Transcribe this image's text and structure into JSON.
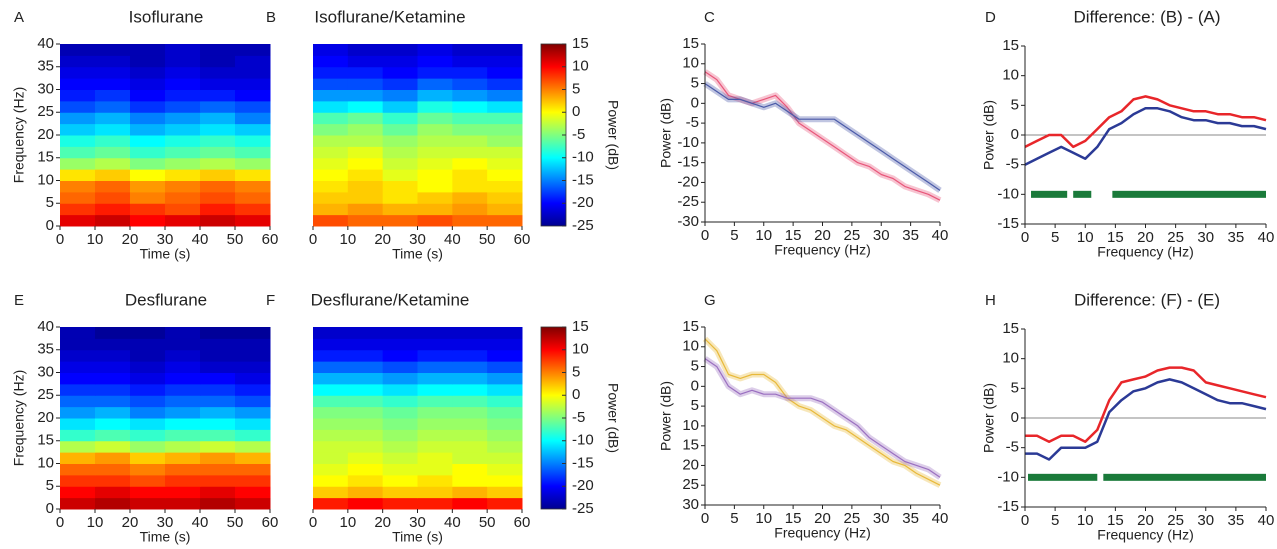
{
  "chart_data": [
    {
      "type": "heatmap",
      "panel": "A",
      "title": "Isoflurane",
      "xlabel": "Time (s)",
      "ylabel": "Frequency (Hz)",
      "xlim": [
        0,
        60
      ],
      "ylim": [
        0,
        40
      ],
      "xticks": [
        0,
        10,
        20,
        30,
        40,
        50,
        60
      ],
      "yticks": [
        0,
        5,
        10,
        15,
        20,
        25,
        30,
        35,
        40
      ],
      "xbins": [
        0,
        10,
        20,
        30,
        40,
        50,
        60
      ],
      "ybins": [
        0,
        2.5,
        5,
        7.5,
        10,
        12.5,
        15,
        17.5,
        20,
        22.5,
        25,
        27.5,
        30,
        32.5,
        35,
        37.5,
        40
      ],
      "zlim": [
        -25,
        15
      ],
      "colormap": "jet",
      "z": [
        [
          11,
          12,
          10,
          11,
          12,
          11
        ],
        [
          8,
          9,
          8,
          7,
          9,
          8
        ],
        [
          6,
          7,
          5,
          6,
          7,
          6
        ],
        [
          5,
          6,
          4,
          5,
          6,
          5
        ],
        [
          1,
          2,
          0,
          1,
          2,
          1
        ],
        [
          -4,
          -3,
          -5,
          -4,
          -3,
          -4
        ],
        [
          -7,
          -6,
          -8,
          -7,
          -6,
          -7
        ],
        [
          -9,
          -8,
          -10,
          -9,
          -8,
          -9
        ],
        [
          -12,
          -11,
          -13,
          -12,
          -11,
          -12
        ],
        [
          -14,
          -13,
          -15,
          -14,
          -13,
          -15
        ],
        [
          -17,
          -16,
          -18,
          -17,
          -16,
          -17
        ],
        [
          -19,
          -18,
          -20,
          -19,
          -19,
          -20
        ],
        [
          -20,
          -20,
          -21,
          -20,
          -21,
          -21
        ],
        [
          -21,
          -21,
          -22,
          -21,
          -22,
          -22
        ],
        [
          -22,
          -22,
          -23,
          -22,
          -23,
          -22
        ],
        [
          -23,
          -23,
          -23,
          -22,
          -23,
          -23
        ]
      ]
    },
    {
      "type": "heatmap",
      "panel": "B",
      "title": "Isoflurane/Ketamine",
      "xlabel": "Time (s)",
      "xlim": [
        0,
        60
      ],
      "ylim": [
        0,
        40
      ],
      "xticks": [
        0,
        10,
        20,
        30,
        40,
        50,
        60
      ],
      "xbins": [
        0,
        10,
        20,
        30,
        40,
        50,
        60
      ],
      "ybins": [
        0,
        2.5,
        5,
        7.5,
        10,
        12.5,
        15,
        17.5,
        20,
        22.5,
        25,
        27.5,
        30,
        32.5,
        35,
        37.5,
        40
      ],
      "zlim": [
        -25,
        15
      ],
      "colormap": "jet",
      "colorbar": {
        "label": "Power (dB)",
        "ticks": [
          15,
          10,
          5,
          0,
          -5,
          -10,
          -15,
          -20,
          -25
        ]
      },
      "z": [
        [
          7,
          6,
          6,
          7,
          6,
          6
        ],
        [
          3,
          4,
          3,
          3,
          4,
          3
        ],
        [
          2,
          2,
          1,
          2,
          3,
          2
        ],
        [
          1,
          2,
          1,
          0,
          1,
          1
        ],
        [
          0,
          1,
          -1,
          0,
          1,
          0
        ],
        [
          -1,
          0,
          -2,
          -1,
          0,
          -1
        ],
        [
          -2,
          -1,
          -3,
          -2,
          -2,
          -2
        ],
        [
          -3,
          -3,
          -4,
          -3,
          -3,
          -4
        ],
        [
          -5,
          -4,
          -6,
          -4,
          -5,
          -5
        ],
        [
          -7,
          -6,
          -8,
          -6,
          -7,
          -7
        ],
        [
          -11,
          -10,
          -12,
          -9,
          -10,
          -11
        ],
        [
          -14,
          -14,
          -15,
          -13,
          -14,
          -15
        ],
        [
          -17,
          -17,
          -18,
          -16,
          -17,
          -18
        ],
        [
          -19,
          -19,
          -20,
          -19,
          -19,
          -20
        ],
        [
          -20,
          -21,
          -21,
          -20,
          -21,
          -21
        ],
        [
          -21,
          -22,
          -22,
          -21,
          -22,
          -22
        ]
      ]
    },
    {
      "type": "line",
      "panel": "C",
      "xlabel": "Frequency (Hz)",
      "ylabel": "Power (dB)",
      "xlim": [
        0,
        40
      ],
      "ylim": [
        -30,
        15
      ],
      "xticks": [
        0,
        5,
        10,
        15,
        20,
        25,
        30,
        35,
        40
      ],
      "yticks": [
        15,
        10,
        5,
        0,
        -5,
        -10,
        -15,
        -20,
        -25,
        -30
      ],
      "x": [
        0,
        2,
        4,
        6,
        8,
        10,
        12,
        14,
        16,
        18,
        20,
        22,
        24,
        26,
        28,
        30,
        32,
        34,
        36,
        38,
        40
      ],
      "series": [
        {
          "color": "#e8567a",
          "values": [
            8,
            6,
            2,
            1,
            0,
            1,
            2,
            -1,
            -5,
            -7,
            -9,
            -11,
            -13,
            -15,
            -16,
            -18,
            -19,
            -21,
            -22,
            -23,
            -24.5
          ]
        },
        {
          "color": "#4a5aa8",
          "values": [
            5,
            3,
            1,
            1,
            0,
            -1,
            0,
            -2,
            -4,
            -4,
            -4,
            -4,
            -6,
            -8,
            -10,
            -12,
            -14,
            -16,
            -18,
            -20,
            -22
          ]
        }
      ]
    },
    {
      "type": "line",
      "panel": "D",
      "title": "Difference: (B) - (A)",
      "xlabel": "Frequency (Hz)",
      "ylabel": "Power (dB)",
      "xlim": [
        0,
        40
      ],
      "ylim": [
        -15,
        15
      ],
      "xticks": [
        0,
        5,
        10,
        15,
        20,
        25,
        30,
        35,
        40
      ],
      "yticks": [
        15,
        10,
        5,
        0,
        -5,
        -10,
        -15
      ],
      "refline": 0,
      "x": [
        0,
        2,
        4,
        6,
        8,
        10,
        12,
        14,
        16,
        18,
        20,
        22,
        24,
        26,
        28,
        30,
        32,
        34,
        36,
        38,
        40
      ],
      "series": [
        {
          "color": "#e8262a",
          "values": [
            -2,
            -1,
            0,
            0,
            -2,
            -1,
            1,
            3,
            4,
            6,
            6.5,
            6,
            5,
            4.5,
            4,
            4,
            3.5,
            3.5,
            3,
            3,
            2.5
          ]
        },
        {
          "color": "#2b3a96",
          "values": [
            -5,
            -4,
            -3,
            -2,
            -3,
            -4,
            -2,
            1,
            2,
            3.5,
            4.5,
            4.5,
            4,
            3,
            2.5,
            2.5,
            2,
            2,
            1.5,
            1.5,
            1
          ]
        }
      ],
      "significance": {
        "y": -10,
        "color": "#1a7a3a",
        "intervals": [
          [
            1,
            7
          ],
          [
            8,
            11
          ],
          [
            14.5,
            40
          ]
        ]
      }
    },
    {
      "type": "heatmap",
      "panel": "E",
      "title": "Desflurane",
      "xlabel": "Time (s)",
      "ylabel": "Frequency (Hz)",
      "xlim": [
        0,
        60
      ],
      "ylim": [
        0,
        40
      ],
      "xticks": [
        0,
        10,
        20,
        30,
        40,
        50,
        60
      ],
      "yticks": [
        0,
        5,
        10,
        15,
        20,
        25,
        30,
        35,
        40
      ],
      "xbins": [
        0,
        10,
        20,
        30,
        40,
        50,
        60
      ],
      "ybins": [
        0,
        2.5,
        5,
        7.5,
        10,
        12.5,
        15,
        17.5,
        20,
        22.5,
        25,
        27.5,
        30,
        32.5,
        35,
        37.5,
        40
      ],
      "zlim": [
        -25,
        15
      ],
      "colormap": "jet",
      "z": [
        [
          12,
          13,
          12,
          12,
          13,
          12
        ],
        [
          10,
          11,
          10,
          10,
          11,
          10
        ],
        [
          8,
          8,
          7,
          8,
          8,
          8
        ],
        [
          6,
          6,
          5,
          6,
          6,
          6
        ],
        [
          3,
          4,
          2,
          3,
          4,
          3
        ],
        [
          -3,
          -2,
          -4,
          -3,
          -2,
          -3
        ],
        [
          -8,
          -7,
          -8,
          -7,
          -7,
          -8
        ],
        [
          -11,
          -10,
          -11,
          -10,
          -10,
          -11
        ],
        [
          -14,
          -13,
          -15,
          -14,
          -13,
          -14
        ],
        [
          -16,
          -16,
          -17,
          -16,
          -16,
          -17
        ],
        [
          -18,
          -18,
          -19,
          -18,
          -18,
          -19
        ],
        [
          -20,
          -20,
          -21,
          -20,
          -20,
          -21
        ],
        [
          -21,
          -21,
          -22,
          -21,
          -22,
          -22
        ],
        [
          -22,
          -22,
          -23,
          -22,
          -23,
          -23
        ],
        [
          -23,
          -23,
          -23,
          -23,
          -23,
          -23
        ],
        [
          -23,
          -24,
          -24,
          -23,
          -24,
          -24
        ]
      ]
    },
    {
      "type": "heatmap",
      "panel": "F",
      "title": "Desflurane/Ketamine",
      "xlabel": "Time (s)",
      "xlim": [
        0,
        60
      ],
      "ylim": [
        0,
        40
      ],
      "xticks": [
        0,
        10,
        20,
        30,
        40,
        50,
        60
      ],
      "xbins": [
        0,
        10,
        20,
        30,
        40,
        50,
        60
      ],
      "ybins": [
        0,
        2.5,
        5,
        7.5,
        10,
        12.5,
        15,
        17.5,
        20,
        22.5,
        25,
        27.5,
        30,
        32.5,
        35,
        37.5,
        40
      ],
      "zlim": [
        -25,
        15
      ],
      "colormap": "jet",
      "colorbar": {
        "label": "Power (dB)",
        "ticks": [
          15,
          10,
          5,
          0,
          -5,
          -10,
          -15,
          -20,
          -25
        ]
      },
      "z": [
        [
          9,
          10,
          9,
          9,
          10,
          9
        ],
        [
          2,
          3,
          2,
          2,
          3,
          2
        ],
        [
          0,
          1,
          0,
          1,
          0,
          0
        ],
        [
          -1,
          0,
          -1,
          -1,
          0,
          -1
        ],
        [
          -2,
          -1,
          -2,
          -1,
          -2,
          -2
        ],
        [
          -2,
          -2,
          -3,
          -2,
          -2,
          -3
        ],
        [
          -3,
          -3,
          -4,
          -3,
          -3,
          -4
        ],
        [
          -4,
          -4,
          -5,
          -4,
          -4,
          -5
        ],
        [
          -5,
          -5,
          -6,
          -5,
          -5,
          -6
        ],
        [
          -7,
          -7,
          -8,
          -7,
          -7,
          -8
        ],
        [
          -10,
          -10,
          -11,
          -10,
          -10,
          -11
        ],
        [
          -13,
          -13,
          -14,
          -13,
          -13,
          -14
        ],
        [
          -16,
          -16,
          -17,
          -16,
          -16,
          -17
        ],
        [
          -19,
          -19,
          -20,
          -19,
          -19,
          -20
        ],
        [
          -21,
          -21,
          -21,
          -21,
          -21,
          -21
        ],
        [
          -22,
          -22,
          -22,
          -22,
          -22,
          -22
        ]
      ]
    },
    {
      "type": "line",
      "panel": "G",
      "xlabel": "Frequency (Hz)",
      "ylabel": "Power (dB)",
      "xlim": [
        0,
        40
      ],
      "ylim": [
        -30,
        15
      ],
      "xticks": [
        0,
        5,
        10,
        15,
        20,
        25,
        30,
        35,
        40
      ],
      "yticks": [
        15,
        10,
        5,
        0,
        {
          "value": -5,
          "label": "5"
        },
        {
          "value": -10,
          "label": "10"
        },
        {
          "value": -15,
          "label": "15"
        },
        {
          "value": -20,
          "label": "20"
        },
        {
          "value": -25,
          "label": "25"
        },
        {
          "value": -30,
          "label": "30"
        }
      ],
      "x": [
        0,
        2,
        4,
        6,
        8,
        10,
        12,
        14,
        16,
        18,
        20,
        22,
        24,
        26,
        28,
        30,
        32,
        34,
        36,
        38,
        40
      ],
      "series": [
        {
          "color": "#e8b93a",
          "values": [
            12,
            9,
            3,
            2,
            3,
            3,
            1,
            -3,
            -5,
            -6,
            -8,
            -10,
            -11,
            -13,
            -15,
            -17,
            -19,
            -20,
            -22,
            -23.5,
            -25
          ]
        },
        {
          "color": "#9a6fc0",
          "values": [
            7,
            5,
            0,
            -2,
            -1,
            -2,
            -2,
            -3,
            -3,
            -3,
            -4,
            -6,
            -8,
            -10,
            -13,
            -15,
            -17,
            -19,
            -20,
            -21,
            -23
          ]
        }
      ]
    },
    {
      "type": "line",
      "panel": "H",
      "title": "Difference: (F) - (E)",
      "xlabel": "Frequency (Hz)",
      "ylabel": "Power (dB)",
      "xlim": [
        0,
        40
      ],
      "ylim": [
        -15,
        15
      ],
      "xticks": [
        0,
        5,
        10,
        15,
        20,
        25,
        30,
        35,
        40
      ],
      "yticks": [
        15,
        10,
        5,
        0,
        -5,
        -10,
        -15
      ],
      "refline": 0,
      "x": [
        0,
        2,
        4,
        6,
        8,
        10,
        12,
        14,
        16,
        18,
        20,
        22,
        24,
        26,
        28,
        30,
        32,
        34,
        36,
        38,
        40
      ],
      "series": [
        {
          "color": "#e8262a",
          "values": [
            -3,
            -3,
            -4,
            -3,
            -3,
            -4,
            -2,
            3,
            6,
            6.5,
            7,
            8,
            8.5,
            8.5,
            8,
            6,
            5.5,
            5,
            4.5,
            4,
            3.5
          ]
        },
        {
          "color": "#2b3a96",
          "values": [
            -6,
            -6,
            -7,
            -5,
            -5,
            -5,
            -4,
            1,
            3,
            4.5,
            5,
            6,
            6.5,
            6,
            5,
            4,
            3,
            2.5,
            2.5,
            2,
            1.5
          ]
        }
      ],
      "significance": {
        "y": -10,
        "color": "#1a7a3a",
        "intervals": [
          [
            0.5,
            12
          ],
          [
            13,
            40
          ]
        ]
      }
    }
  ]
}
